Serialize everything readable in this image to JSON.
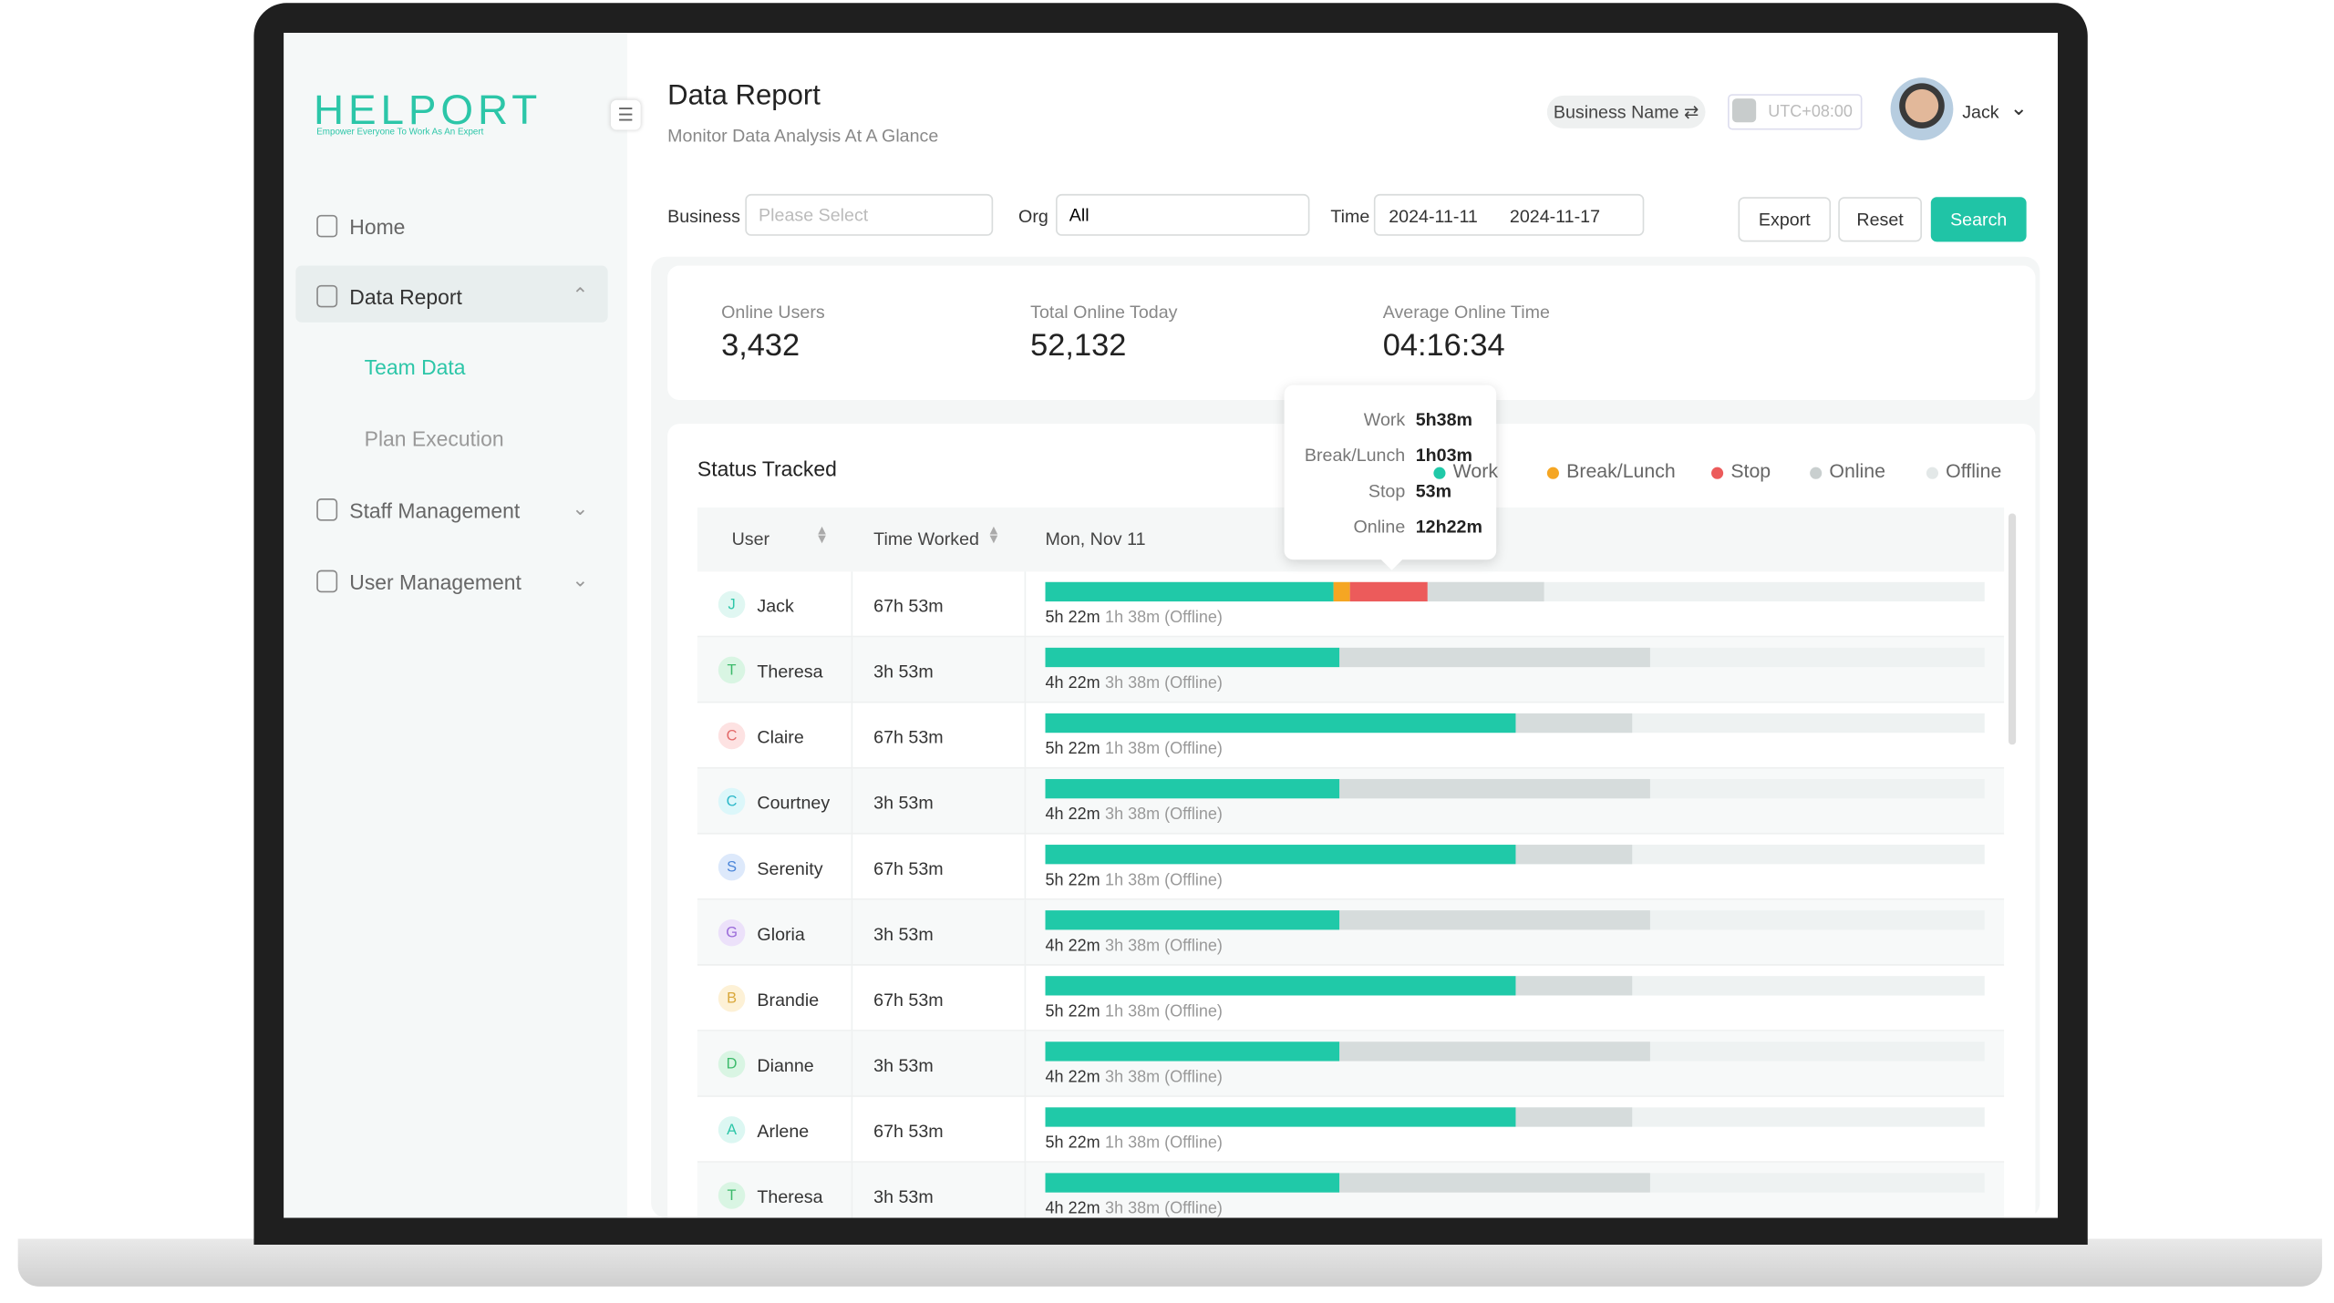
{
  "sidebar": {
    "logo": "HELPORT",
    "tagline": "Empower Everyone To Work As An Expert",
    "menu": [
      "Home",
      "Data Report",
      "Team Data",
      "Plan Execution",
      "Staff Management",
      "User Management"
    ]
  },
  "header": {
    "title": "Data Report",
    "subtitle": "Monitor Data Analysis At A Glance",
    "business_name": "Business Name",
    "timezone": "UTC+08:00",
    "user": "Jack"
  },
  "filters": {
    "business_label": "Business",
    "business_placeholder": "Please Select",
    "org_label": "Org",
    "org_value": "All",
    "time_label": "Time",
    "start": "2024-11-11",
    "end": "2024-11-17",
    "buttons": [
      "Export",
      "Reset",
      "Search"
    ]
  },
  "stats": [
    {
      "label": "Online Users",
      "value": "3,432"
    },
    {
      "label": "Total Online Today",
      "value": "52,132"
    },
    {
      "label": "Average Online Time",
      "value": "04:16:34"
    }
  ],
  "status": {
    "title": "Status Tracked",
    "legend": [
      "Work",
      "Break/Lunch",
      "Stop",
      "Online",
      "Offline"
    ],
    "tooltip": [
      [
        "Work",
        "5h38m"
      ],
      [
        "Break/Lunch",
        "1h03m"
      ],
      [
        "Stop",
        "53m"
      ],
      [
        "Online",
        "12h22m"
      ]
    ],
    "columns": [
      "User",
      "Time Worked",
      "Mon, Nov 11"
    ],
    "rows": [
      [
        "J",
        "Jack",
        "67h 53m",
        "5h 22m",
        "1h 38m (Offline)"
      ],
      [
        "T",
        "Theresa",
        "3h 53m",
        "4h 22m",
        "3h 38m (Offline)"
      ],
      [
        "C",
        "Claire",
        "67h 53m",
        "5h 22m",
        "1h 38m (Offline)"
      ],
      [
        "C",
        "Courtney",
        "3h 53m",
        "4h 22m",
        "3h 38m (Offline)"
      ],
      [
        "S",
        "Serenity",
        "67h 53m",
        "5h 22m",
        "1h 38m (Offline)"
      ],
      [
        "G",
        "Gloria",
        "3h 53m",
        "4h 22m",
        "3h 38m (Offline)"
      ],
      [
        "B",
        "Brandie",
        "67h 53m",
        "5h 22m",
        "1h 38m (Offline)"
      ],
      [
        "D",
        "Dianne",
        "3h 53m",
        "4h 22m",
        "3h 38m (Offline)"
      ],
      [
        "A",
        "Arlene",
        "67h 53m",
        "5h 22m",
        "1h 38m (Offline)"
      ],
      [
        "T",
        "Theresa",
        "3h 53m",
        "4h 22m",
        "3h 38m (Offline)"
      ]
    ]
  }
}
